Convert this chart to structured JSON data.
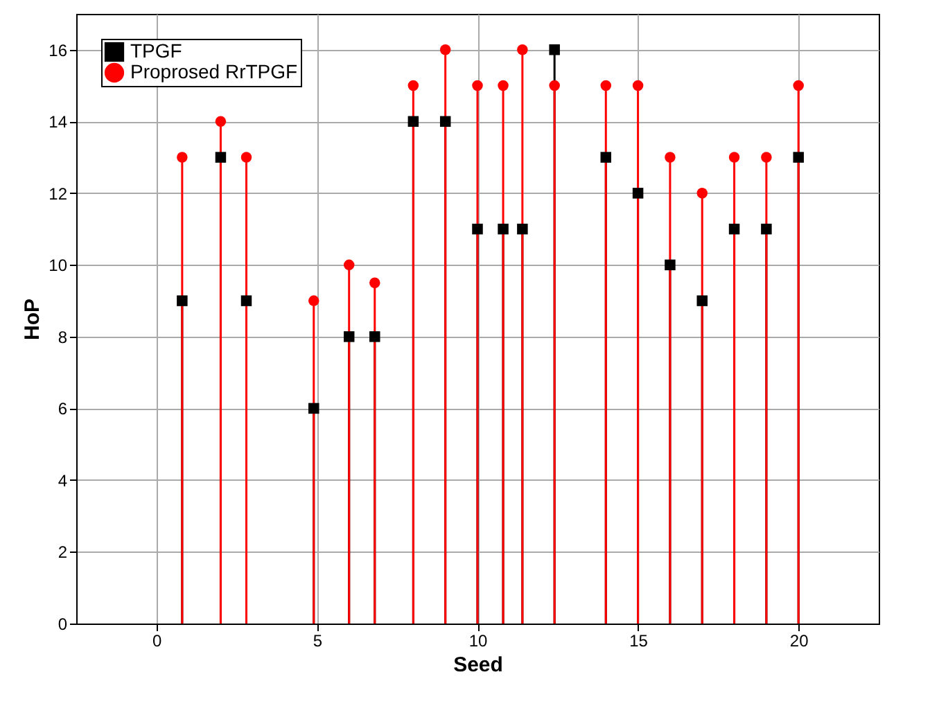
{
  "chart_data": {
    "type": "lollipop",
    "xlabel": "Seed",
    "ylabel": "HoP",
    "x": [
      0.8,
      2,
      2.8,
      4.9,
      6,
      6.8,
      8,
      9,
      10,
      10.8,
      11.4,
      12.4,
      14,
      15,
      16,
      17,
      18,
      19,
      20
    ],
    "series": [
      {
        "name": "TPGF",
        "color": "#000000",
        "marker": "square",
        "values": [
          9,
          13,
          9,
          6,
          8,
          8,
          14,
          14,
          11,
          11,
          11,
          16,
          13,
          12,
          10,
          9,
          11,
          11,
          13
        ]
      },
      {
        "name": "Proprosed RrTPGF",
        "color": "#ff0000",
        "marker": "circle",
        "values": [
          13,
          14,
          13,
          9,
          10,
          9.5,
          15,
          16,
          15,
          15,
          16,
          15,
          15,
          15,
          13,
          12,
          13,
          13,
          15
        ]
      }
    ],
    "xlim": [
      -2.5,
      22.5
    ],
    "xticks": [
      0,
      5,
      10,
      15,
      20
    ],
    "ylim": [
      0,
      17
    ],
    "yticks": [
      0,
      2,
      4,
      6,
      8,
      10,
      12,
      14,
      16
    ],
    "grid": true,
    "legend": "top left"
  }
}
